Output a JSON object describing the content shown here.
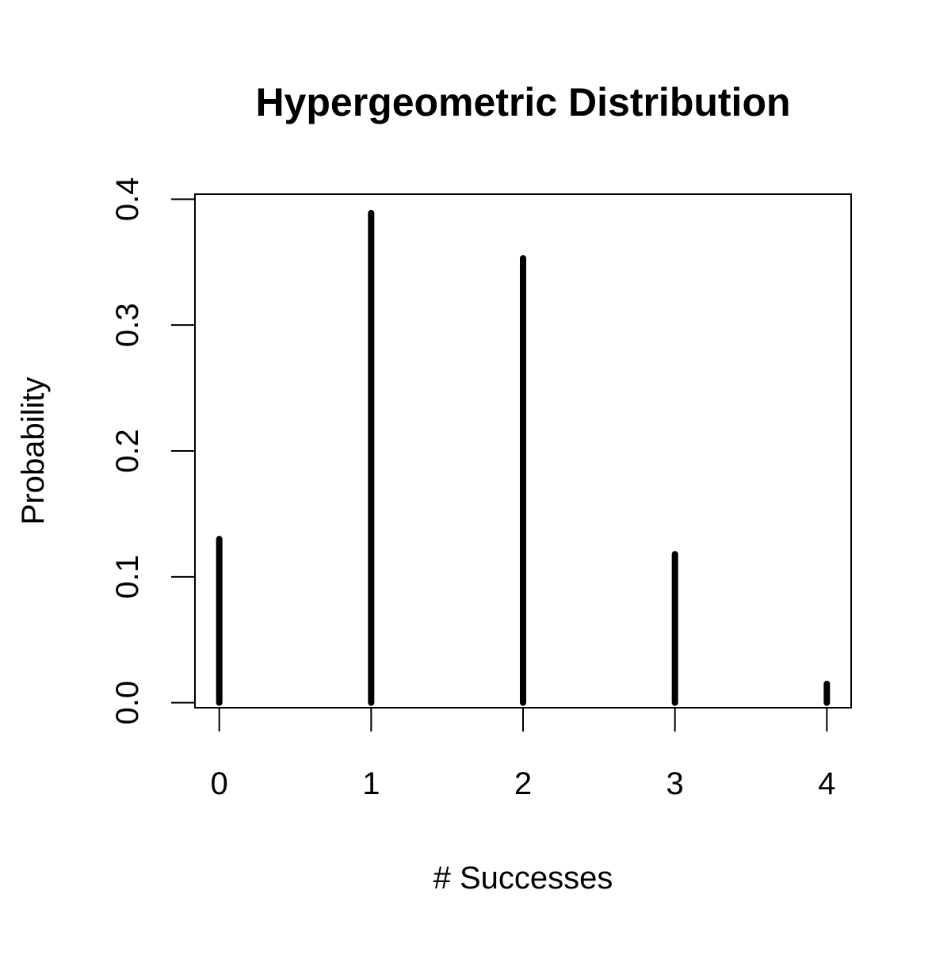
{
  "chart_data": {
    "type": "bar",
    "subtype": "stem",
    "title": "Hypergeometric Distribution",
    "xlabel": "# Successes",
    "ylabel": "Probability",
    "categories": [
      "0",
      "1",
      "2",
      "3",
      "4"
    ],
    "x": [
      0,
      1,
      2,
      3,
      4
    ],
    "values": [
      0.13,
      0.389,
      0.353,
      0.118,
      0.015
    ],
    "xlim": [
      -0.16,
      4.16
    ],
    "ylim": [
      -0.004,
      0.404
    ],
    "xticks": [
      0,
      1,
      2,
      3,
      4
    ],
    "xtick_labels": [
      "0",
      "1",
      "2",
      "3",
      "4"
    ],
    "yticks": [
      0,
      0.1,
      0.2,
      0.3,
      0.4
    ],
    "ytick_labels": [
      "0.0",
      "0.1",
      "0.2",
      "0.3",
      "0.4"
    ],
    "grid": false,
    "legend": "none",
    "colors": {
      "stem": "#000000",
      "axis": "#000000",
      "background": "#ffffff"
    }
  }
}
